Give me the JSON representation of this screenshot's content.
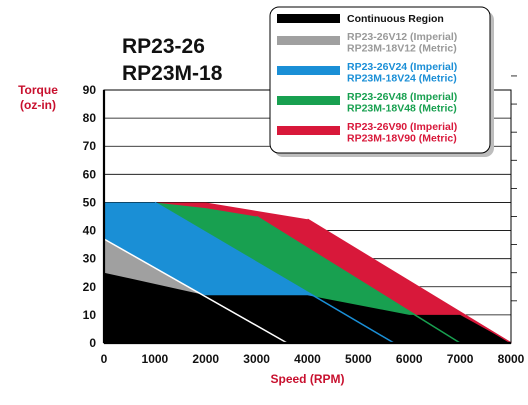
{
  "chart_data": {
    "type": "area",
    "title": [
      "RP23-26",
      "RP23M-18"
    ],
    "xlabel": "Speed (RPM)",
    "ylabel": [
      "Torque",
      "(oz-in)"
    ],
    "xlim": [
      0,
      8000
    ],
    "ylim": [
      0,
      90
    ],
    "xticks": [
      0,
      1000,
      2000,
      3000,
      4000,
      5000,
      6000,
      7000,
      8000
    ],
    "yticks": [
      0,
      10,
      20,
      30,
      40,
      50,
      60,
      70,
      80,
      90
    ],
    "grid": "horizontal",
    "legend_position": "top-right",
    "legend": [
      {
        "id": "continuous",
        "lines": [
          "Continuous Region"
        ],
        "color": "#000000",
        "text_color": "#111111"
      },
      {
        "id": "v12",
        "lines": [
          "RP23-26V12 (Imperial)",
          "RP23M-18V12 (Metric)"
        ],
        "color": "#a0a0a0",
        "text_color": "#9a9a9a"
      },
      {
        "id": "v24",
        "lines": [
          "RP23-26V24 (Imperial)",
          "RP23M-18V24 (Metric)"
        ],
        "color": "#1a8fd6",
        "text_color": "#1a8fd6"
      },
      {
        "id": "v48",
        "lines": [
          "RP23-26V48 (Imperial)",
          "RP23M-18V48 (Metric)"
        ],
        "color": "#18a050",
        "text_color": "#18a050"
      },
      {
        "id": "v90",
        "lines": [
          "RP23-26V90 (Imperial)",
          "RP23M-18V90 (Metric)"
        ],
        "color": "#d8183a",
        "text_color": "#d8183a"
      }
    ],
    "series": [
      {
        "id": "v90",
        "color": "#d8183a",
        "x": [
          0,
          1000,
          2000,
          4000,
          8000
        ],
        "y": [
          50,
          50,
          50,
          44,
          0
        ]
      },
      {
        "id": "v48",
        "color": "#18a050",
        "x": [
          0,
          1000,
          2000,
          3000,
          7000
        ],
        "y": [
          50,
          50,
          48,
          45,
          0
        ]
      },
      {
        "id": "v24",
        "color": "#1a8fd6",
        "x": [
          0,
          1000,
          5700
        ],
        "y": [
          50,
          50,
          0
        ]
      },
      {
        "id": "v12",
        "color": "#a0a0a0",
        "x": [
          0,
          3600
        ],
        "y": [
          37,
          0
        ]
      },
      {
        "id": "continuous",
        "color": "#000000",
        "x": [
          0,
          2000,
          4000,
          6000,
          7000,
          8000
        ],
        "y": [
          25,
          17,
          17,
          10,
          10,
          0
        ]
      }
    ]
  }
}
